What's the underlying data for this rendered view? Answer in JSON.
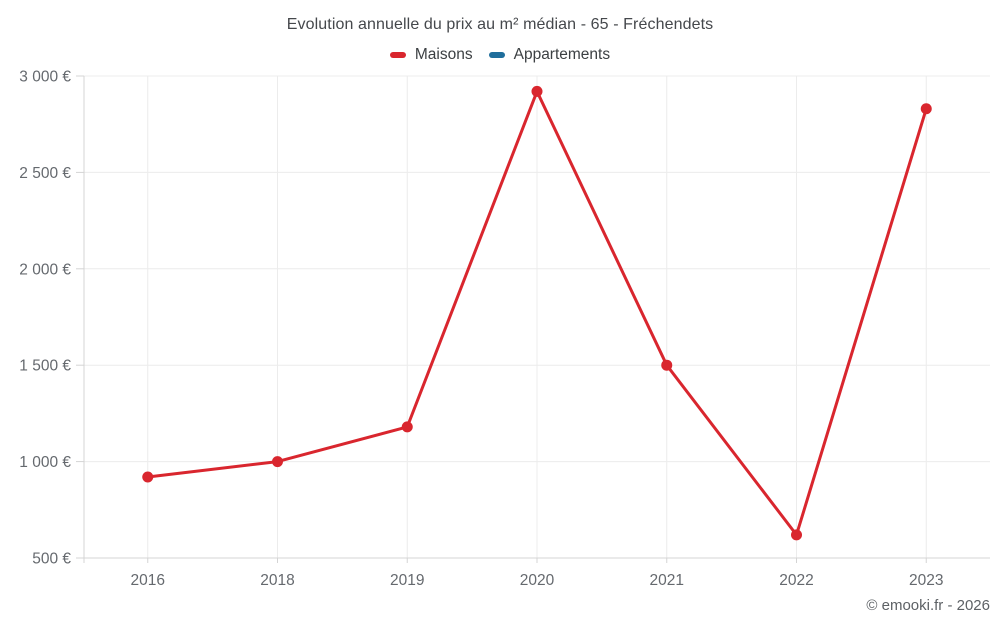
{
  "title": "Evolution annuelle du prix au m² médian - 65 - Fréchendets",
  "watermark": "© emooki.fr - 2026",
  "legend": [
    {
      "label": "Maisons",
      "color": "#d9262e"
    },
    {
      "label": "Appartements",
      "color": "#1f6e9c"
    }
  ],
  "colors": {
    "maisons": "#d9262e",
    "appartements": "#1f6e9c",
    "grid": "#ececec",
    "axis": "#d4d4d4",
    "tick_label": "#65696e",
    "title_text": "#45484c",
    "legend_text": "#3c4043",
    "watermark_text": "#5d6165"
  },
  "chart_data": {
    "type": "line",
    "title": "Evolution annuelle du prix au m² médian - 65 - Fréchendets",
    "categories": [
      "2016",
      "2018",
      "2019",
      "2020",
      "2021",
      "2022",
      "2023"
    ],
    "series": [
      {
        "name": "Maisons",
        "color": "#d9262e",
        "values": [
          920,
          1000,
          1180,
          2920,
          1500,
          620,
          2830
        ]
      },
      {
        "name": "Appartements",
        "color": "#1f6e9c",
        "values": []
      }
    ],
    "xlabel": "",
    "ylabel": "",
    "ylim": [
      500,
      3000
    ],
    "ytick_step": 500,
    "ytick_suffix": " €",
    "grid": true,
    "legend_position": "top",
    "point_radius": 5.5,
    "line_width": 3
  }
}
